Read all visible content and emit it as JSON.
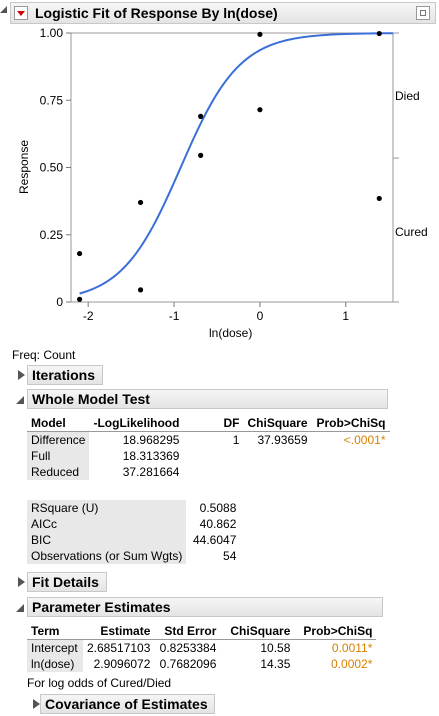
{
  "report": {
    "title": "Logistic Fit of Response By ln(dose)",
    "freq_label": "Freq: Count",
    "footnote": "For log odds of Cured/Died"
  },
  "chart_data": {
    "type": "scatter",
    "xlabel": "ln(dose)",
    "ylabel": "Response",
    "xlim": [
      -2.2,
      1.55
    ],
    "ylim": [
      0,
      1
    ],
    "x_ticks": [
      "-2",
      "-1",
      "0",
      "1"
    ],
    "x_tick_values": [
      -2,
      -1,
      0,
      1
    ],
    "y_ticks": [
      "0",
      "0.25",
      "0.50",
      "0.75",
      "1.00"
    ],
    "y_tick_values": [
      0,
      0.25,
      0.5,
      0.75,
      1.0
    ],
    "right_labels": [
      "Died",
      "Cured"
    ],
    "right_divider": 0.535,
    "curve": {
      "intercept": 2.68517103,
      "slope": 2.9096072
    },
    "points": [
      {
        "x": -2.1,
        "y": 0.18
      },
      {
        "x": -2.1,
        "y": 0.01
      },
      {
        "x": -1.39,
        "y": 0.37
      },
      {
        "x": -1.39,
        "y": 0.045
      },
      {
        "x": -0.69,
        "y": 0.69
      },
      {
        "x": -0.69,
        "y": 0.545
      },
      {
        "x": 0.0,
        "y": 0.995
      },
      {
        "x": 0.0,
        "y": 0.715
      },
      {
        "x": 1.39,
        "y": 0.998
      },
      {
        "x": 1.39,
        "y": 0.385
      }
    ],
    "curve_color": "#3a6fd8"
  },
  "sections": {
    "iterations": "Iterations",
    "whole_model": "Whole Model Test",
    "fit_details": "Fit Details",
    "params": "Parameter Estimates",
    "cov": "Covariance of Estimates"
  },
  "whole_model": {
    "headers": [
      "Model",
      "-LogLikelihood",
      "DF",
      "ChiSquare",
      "Prob>ChiSq"
    ],
    "rows": [
      [
        "Difference",
        "18.968295",
        "1",
        "37.93659",
        "<.0001*"
      ],
      [
        "Full",
        "18.313369",
        "",
        "",
        ""
      ],
      [
        "Reduced",
        "37.281664",
        "",
        "",
        ""
      ]
    ]
  },
  "fit_stats": [
    [
      "RSquare (U)",
      "0.5088"
    ],
    [
      "AICc",
      "40.862"
    ],
    [
      "BIC",
      "44.6047"
    ],
    [
      "Observations (or Sum Wgts)",
      "54"
    ]
  ],
  "param_estimates": {
    "headers": [
      "Term",
      "Estimate",
      "Std Error",
      "ChiSquare",
      "Prob>ChiSq"
    ],
    "rows": [
      [
        "Intercept",
        "2.68517103",
        "0.8253384",
        "10.58",
        "0.0011*"
      ],
      [
        "ln(dose)",
        "2.9096072",
        "0.7682096",
        "14.35",
        "0.0002*"
      ]
    ]
  },
  "colors": {
    "accent_orange": "#d88000"
  }
}
